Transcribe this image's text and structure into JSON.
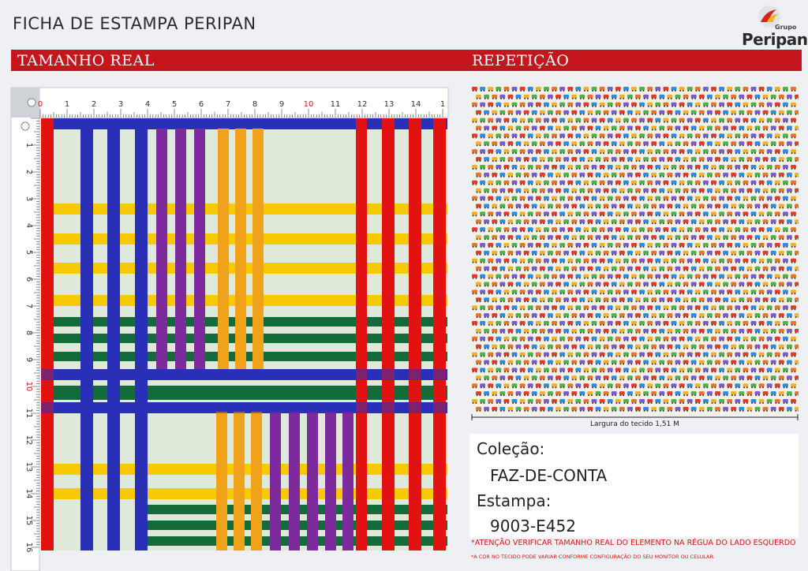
{
  "header": {
    "title": "FICHA DE ESTAMPA PERIPAN",
    "logo_small": "Grupo",
    "logo_name": "Peripan"
  },
  "sections": {
    "left_title": "TAMANHO REAL",
    "right_title": "REPETIÇÃO"
  },
  "ruler": {
    "top_labels": [
      "0",
      "1",
      "2",
      "3",
      "4",
      "5",
      "6",
      "7",
      "8",
      "9",
      "10",
      "11",
      "12",
      "13",
      "14",
      "1"
    ],
    "left_labels": [
      "1",
      "2",
      "3",
      "4",
      "5",
      "6",
      "7",
      "8",
      "9",
      "10",
      "11",
      "12",
      "13",
      "14",
      "15",
      "16"
    ],
    "highlight_color": "#d11a1a"
  },
  "pattern_colors": {
    "background": "#dfe9da",
    "red": "#e31212",
    "blue": "#2a2fb8",
    "purple": "#7d2a9c",
    "orange": "#f0a21b",
    "yellow": "#f6c900",
    "green": "#146b3a"
  },
  "repeat": {
    "width_label": "Largura do tecido 1,51 M",
    "motif_colors": [
      "#e23b2e",
      "#2f8de0",
      "#f2b12b",
      "#4db34a",
      "#e8742a",
      "#7a5bd0"
    ]
  },
  "info": {
    "collection_label": "Coleção:",
    "collection_value": "FAZ-DE-CONTA",
    "print_label": "Estampa:",
    "print_value": "9003-E452"
  },
  "notes": {
    "note1": "*ATENÇÃO VERIFICAR TAMANHO REAL DO ELEMENTO NA RÉGUA DO LADO ESQUERDO",
    "note2": "*A COR NO TECIDO PODE VARIAR CONFORME CONFIGURAÇÃO DO SEU MONITOR OU CELULAR."
  },
  "brand": {
    "accent": "#c4161c",
    "logo_red": "#d6241c",
    "logo_yellow": "#f3b31a"
  }
}
